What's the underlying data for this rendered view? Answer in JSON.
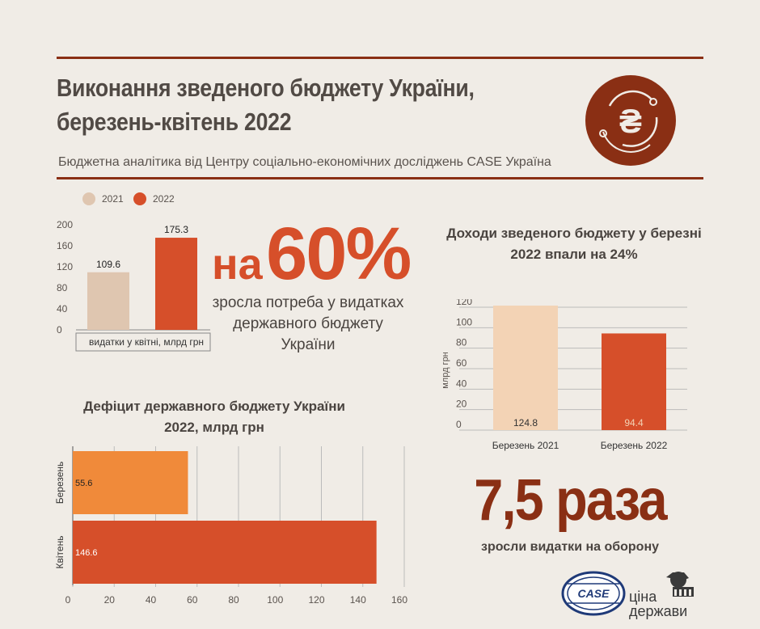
{
  "header": {
    "title_line1": "Виконання зведеного бюджету України,",
    "title_line2": "березень-квітень 2022",
    "subtitle": "Бюджетна аналітика від Центру соціально-економічних досліджень CASE Україна",
    "logo_symbol": "₴"
  },
  "colors": {
    "accent_dark": "#8a2f14",
    "accent": "#d64f2a",
    "light": "#dfc6b0",
    "peach": "#f3d3b5",
    "orange": "#f08a3a"
  },
  "legend": {
    "items": [
      {
        "label": "2021",
        "color": "#dfc6b0"
      },
      {
        "label": "2022",
        "color": "#d64f2a"
      }
    ]
  },
  "headline": {
    "na": "на",
    "percent": "60%",
    "caption": "зросла потреба у видатках державного бюджету України"
  },
  "defense": {
    "value": "7,5 раза",
    "caption": "зросли видатки на оборону"
  },
  "logos": {
    "case": "CASE",
    "cina_line1": "ціна",
    "cina_line2": "держави"
  },
  "chart_data": [
    {
      "id": "expenditures",
      "type": "bar",
      "categories": [
        "2021",
        "2022"
      ],
      "values": [
        109.6,
        175.3
      ],
      "colors": [
        "#dfc6b0",
        "#d64f2a"
      ],
      "xlabel": "видатки у квітні, млрд грн",
      "ylim": [
        0,
        200
      ],
      "yticks": [
        0,
        40,
        80,
        120,
        160,
        200
      ]
    },
    {
      "id": "revenues",
      "type": "bar",
      "title": "Доходи зведеного бюджету у березні 2022 впали на 24%",
      "categories": [
        "Березень 2021",
        "Березень 2022"
      ],
      "values": [
        124.8,
        94.4
      ],
      "colors": [
        "#f3d3b5",
        "#d64f2a"
      ],
      "ylabel": "млрд грн",
      "ylim": [
        0,
        120
      ],
      "yticks": [
        0,
        20,
        40,
        60,
        80,
        100,
        120
      ]
    },
    {
      "id": "deficit",
      "type": "bar",
      "orientation": "horizontal",
      "title": "Дефіцит державного бюджету України 2022, млрд грн",
      "categories": [
        "Березень",
        "Квітень"
      ],
      "values": [
        55.6,
        146.6
      ],
      "colors": [
        "#f08a3a",
        "#d64f2a"
      ],
      "xlim": [
        0,
        160
      ],
      "xticks": [
        0,
        20,
        40,
        60,
        80,
        100,
        120,
        140,
        160
      ]
    }
  ]
}
